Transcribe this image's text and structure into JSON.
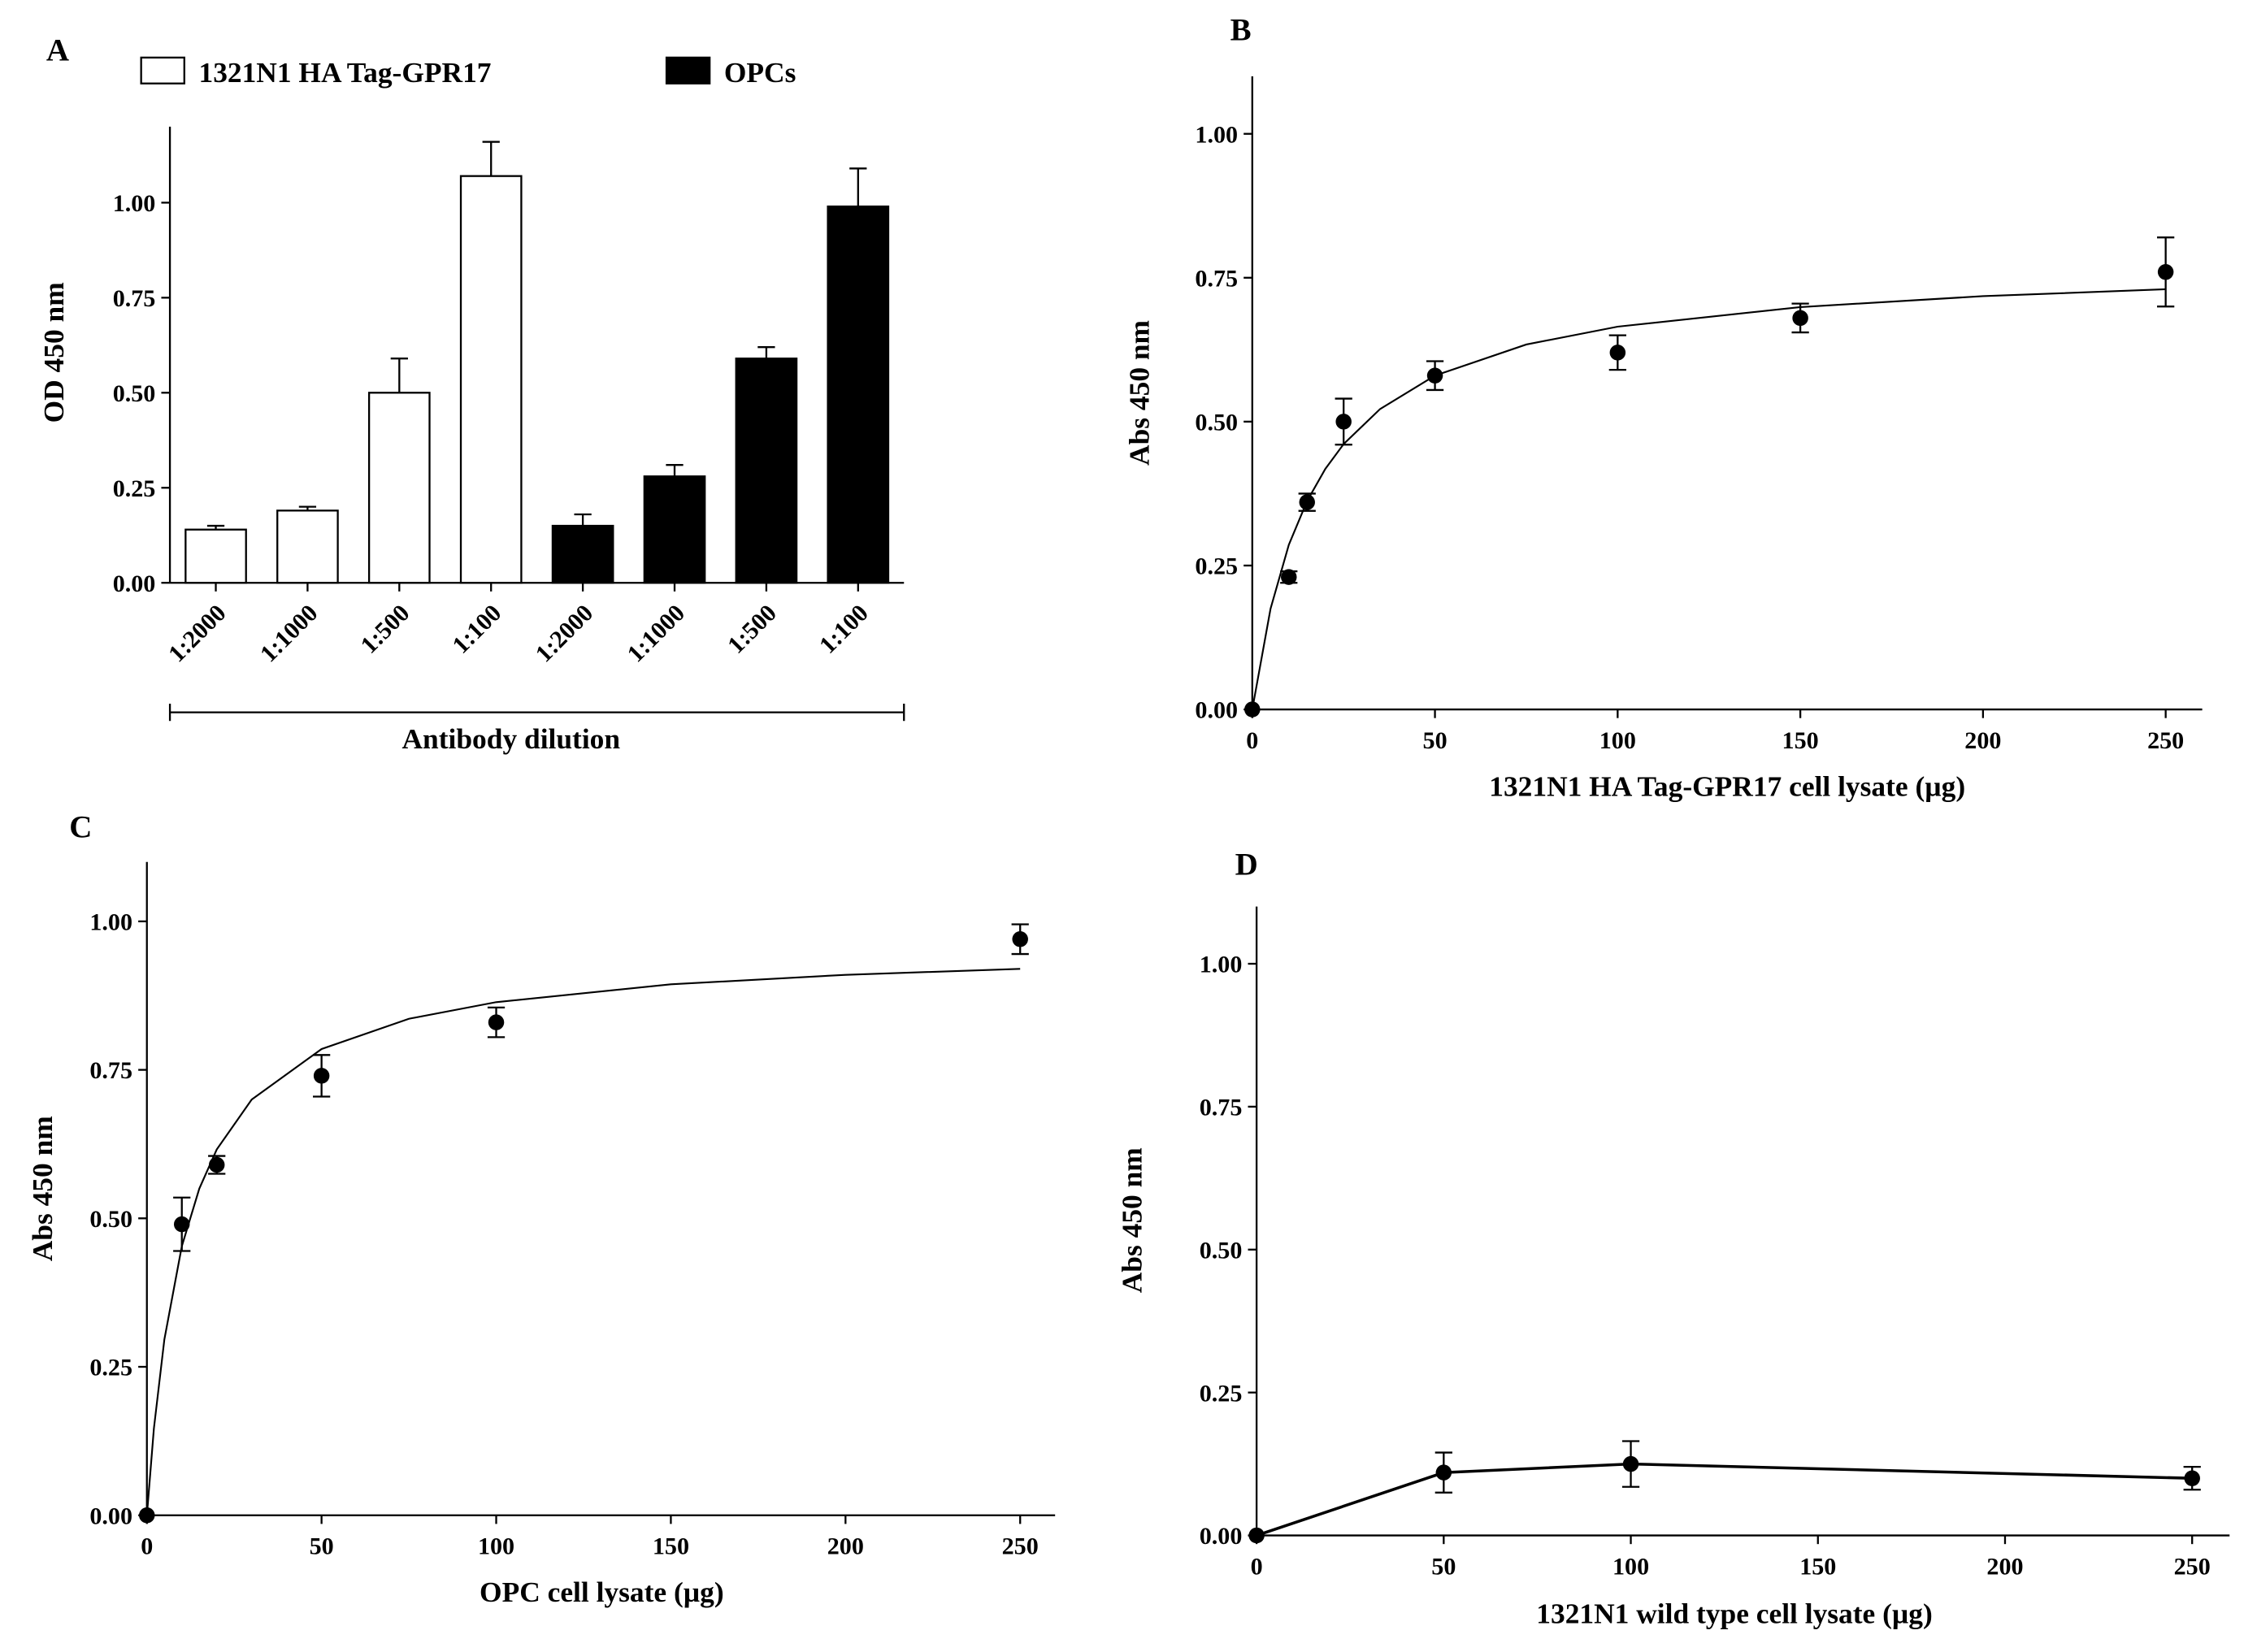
{
  "chart_data": [
    {
      "type": "bar",
      "panel_label": "A",
      "ylabel": "OD 450 nm",
      "xlabel": "Antibody dilution",
      "categories": [
        "1:2000",
        "1:1000",
        "1:500",
        "1:100",
        "1:2000",
        "1:1000",
        "1:500",
        "1:100"
      ],
      "series": [
        {
          "name": "1321N1 HA Tag-GPR17",
          "color": "#ffffff",
          "values": [
            0.14,
            0.19,
            0.5,
            1.07,
            null,
            null,
            null,
            null
          ],
          "errors": [
            0.01,
            0.01,
            0.09,
            0.09,
            null,
            null,
            null,
            null
          ]
        },
        {
          "name": "OPCs",
          "color": "#000000",
          "values": [
            null,
            null,
            null,
            null,
            0.15,
            0.28,
            0.59,
            0.99
          ],
          "errors": [
            null,
            null,
            null,
            null,
            0.03,
            0.03,
            0.03,
            0.1
          ]
        }
      ],
      "ylim": [
        0,
        1.2
      ],
      "yticks": [
        {
          "value": 0,
          "label": "0.00"
        },
        {
          "value": 0.25,
          "label": "0.25"
        },
        {
          "value": 0.5,
          "label": "0.50"
        },
        {
          "value": 0.75,
          "label": "0.75"
        },
        {
          "value": 1,
          "label": "1.00"
        }
      ]
    },
    {
      "type": "scatter",
      "panel_label": "B",
      "ylabel": "Abs 450 nm",
      "xlabel": "1321N1 HA Tag-GPR17 cell lysate (µg)",
      "x": [
        0,
        10,
        15,
        25,
        50,
        100,
        150,
        250
      ],
      "values": [
        0,
        0.23,
        0.36,
        0.5,
        0.58,
        0.62,
        0.68,
        0.76
      ],
      "errors": [
        0,
        0.01,
        0.015,
        0.04,
        0.025,
        0.03,
        0.025,
        0.06
      ],
      "fit": {
        "x": [
          0,
          5,
          10,
          15,
          20,
          25,
          35,
          50,
          75,
          100,
          150,
          200,
          250
        ],
        "y": [
          0,
          0.175,
          0.286,
          0.362,
          0.418,
          0.461,
          0.522,
          0.58,
          0.634,
          0.665,
          0.699,
          0.718,
          0.73
        ]
      },
      "xlim": [
        0,
        260
      ],
      "ylim": [
        0,
        1.1
      ],
      "xticks": [
        0,
        50,
        100,
        150,
        200,
        250
      ],
      "yticks": [
        {
          "value": 0,
          "label": "0.00"
        },
        {
          "value": 0.25,
          "label": "0.25"
        },
        {
          "value": 0.5,
          "label": "0.50"
        },
        {
          "value": 0.75,
          "label": "0.75"
        },
        {
          "value": 1,
          "label": "1.00"
        }
      ]
    },
    {
      "type": "scatter",
      "panel_label": "C",
      "ylabel": "Abs 450 nm",
      "xlabel": "OPC cell lysate (µg)",
      "x": [
        0,
        10,
        20,
        50,
        100,
        250
      ],
      "values": [
        0,
        0.49,
        0.59,
        0.74,
        0.83,
        0.97
      ],
      "errors": [
        0,
        0.045,
        0.015,
        0.035,
        0.025,
        0.025
      ],
      "fit": {
        "x": [
          0,
          2,
          5,
          10,
          15,
          20,
          30,
          50,
          75,
          100,
          150,
          200,
          250
        ],
        "y": [
          0,
          0.146,
          0.296,
          0.453,
          0.55,
          0.616,
          0.7,
          0.785,
          0.836,
          0.864,
          0.894,
          0.91,
          0.92
        ]
      },
      "xlim": [
        0,
        260
      ],
      "ylim": [
        0,
        1.1
      ],
      "xticks": [
        0,
        50,
        100,
        150,
        200,
        250
      ],
      "yticks": [
        {
          "value": 0,
          "label": "0.00"
        },
        {
          "value": 0.25,
          "label": "0.25"
        },
        {
          "value": 0.5,
          "label": "0.50"
        },
        {
          "value": 0.75,
          "label": "0.75"
        },
        {
          "value": 1,
          "label": "1.00"
        }
      ]
    },
    {
      "type": "line",
      "panel_label": "D",
      "ylabel": "Abs 450 nm",
      "xlabel": "1321N1 wild type cell lysate (µg)",
      "x": [
        0,
        50,
        100,
        250
      ],
      "values": [
        0,
        0.11,
        0.125,
        0.1
      ],
      "errors": [
        0,
        0.035,
        0.04,
        0.02
      ],
      "xlim": [
        0,
        260
      ],
      "ylim": [
        0,
        1.1
      ],
      "xticks": [
        0,
        50,
        100,
        150,
        200,
        250
      ],
      "yticks": [
        {
          "value": 0,
          "label": "0.00"
        },
        {
          "value": 0.25,
          "label": "0.25"
        },
        {
          "value": 0.5,
          "label": "0.50"
        },
        {
          "value": 0.75,
          "label": "0.75"
        },
        {
          "value": 1,
          "label": "1.00"
        }
      ]
    }
  ]
}
